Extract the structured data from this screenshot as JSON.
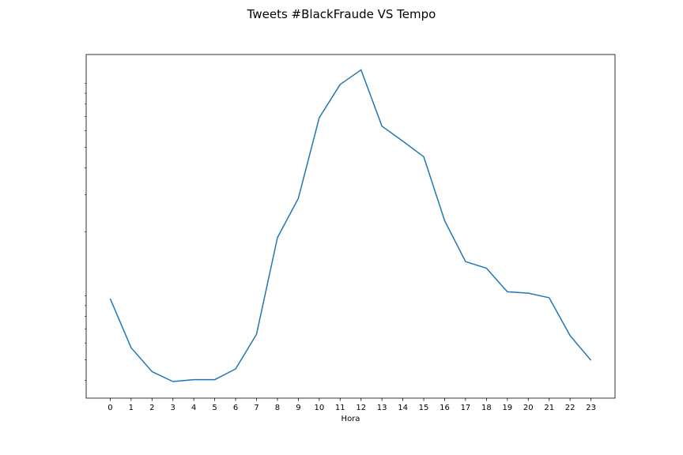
{
  "chart_data": {
    "type": "line",
    "title": "Tweets #BlackFraude VS Tempo",
    "xlabel": "Hora",
    "ylabel": "",
    "yscale": "log",
    "x": [
      0,
      1,
      2,
      3,
      4,
      5,
      6,
      7,
      8,
      9,
      10,
      11,
      12,
      13,
      14,
      15,
      16,
      17,
      18,
      19,
      20,
      21,
      22,
      23
    ],
    "xticks": [
      "0",
      "1",
      "2",
      "3",
      "4",
      "5",
      "6",
      "7",
      "8",
      "9",
      "10",
      "11",
      "12",
      "13",
      "14",
      "15",
      "16",
      "17",
      "18",
      "19",
      "20",
      "21",
      "22",
      "23"
    ],
    "series": [
      {
        "color": "#1f77b4",
        "values": [
          970,
          570,
          440,
          395,
          403,
          403,
          453,
          660,
          1880,
          2880,
          6900,
          9900,
          11600,
          6300,
          5350,
          4520,
          2260,
          1450,
          1350,
          1045,
          1030,
          980,
          650,
          497
        ]
      }
    ],
    "xlim": [
      -1.15,
      24.15
    ],
    "ylim": [
      330,
      13700
    ],
    "grid": false,
    "legend": "none"
  }
}
